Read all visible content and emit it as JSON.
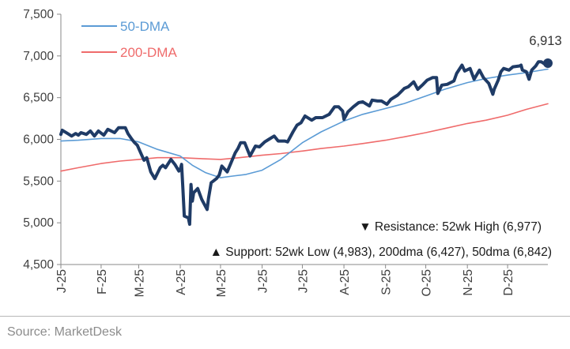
{
  "chart_data": {
    "type": "line",
    "title": "",
    "xlabel": "",
    "ylabel": "",
    "ylim": [
      4500,
      7500
    ],
    "y_ticks": [
      4500,
      5000,
      5500,
      6000,
      6500,
      7000,
      7500
    ],
    "y_tick_labels": [
      "4,500",
      "5,000",
      "5,500",
      "6,000",
      "6,500",
      "7,000",
      "7,500"
    ],
    "x_range": [
      "2025-01-02",
      "2025-12-31"
    ],
    "x_ticks": [
      {
        "date": "2025-01-01",
        "label": "J-25"
      },
      {
        "date": "2025-02-01",
        "label": "F-25"
      },
      {
        "date": "2025-03-01",
        "label": "M-25"
      },
      {
        "date": "2025-04-01",
        "label": "A-25"
      },
      {
        "date": "2025-05-01",
        "label": "M-25"
      },
      {
        "date": "2025-06-01",
        "label": "J-25"
      },
      {
        "date": "2025-07-01",
        "label": "J-25"
      },
      {
        "date": "2025-08-01",
        "label": "A-25"
      },
      {
        "date": "2025-09-01",
        "label": "S-25"
      },
      {
        "date": "2025-10-01",
        "label": "O-25"
      },
      {
        "date": "2025-11-01",
        "label": "N-25"
      },
      {
        "date": "2025-12-01",
        "label": "D-25"
      }
    ],
    "grid": false,
    "legend_position": "top-left",
    "series": [
      {
        "name": "",
        "color": "#1f3b66",
        "points": [
          [
            "2025-01-02",
            6060
          ],
          [
            "2025-01-03",
            6110
          ],
          [
            "2025-01-07",
            6070
          ],
          [
            "2025-01-10",
            6040
          ],
          [
            "2025-01-13",
            6070
          ],
          [
            "2025-01-15",
            6050
          ],
          [
            "2025-01-17",
            6080
          ],
          [
            "2025-01-21",
            6060
          ],
          [
            "2025-01-24",
            6100
          ],
          [
            "2025-01-27",
            6040
          ],
          [
            "2025-01-30",
            6100
          ],
          [
            "2025-02-03",
            6050
          ],
          [
            "2025-02-06",
            6120
          ],
          [
            "2025-02-11",
            6080
          ],
          [
            "2025-02-14",
            6140
          ],
          [
            "2025-02-19",
            6140
          ],
          [
            "2025-02-21",
            6070
          ],
          [
            "2025-02-24",
            6000
          ],
          [
            "2025-02-26",
            5960
          ],
          [
            "2025-02-28",
            5930
          ],
          [
            "2025-03-03",
            5820
          ],
          [
            "2025-03-05",
            5750
          ],
          [
            "2025-03-07",
            5780
          ],
          [
            "2025-03-10",
            5610
          ],
          [
            "2025-03-13",
            5530
          ],
          [
            "2025-03-17",
            5660
          ],
          [
            "2025-03-19",
            5690
          ],
          [
            "2025-03-21",
            5660
          ],
          [
            "2025-03-25",
            5760
          ],
          [
            "2025-03-28",
            5700
          ],
          [
            "2025-03-31",
            5620
          ],
          [
            "2025-04-01",
            5640
          ],
          [
            "2025-04-02",
            5700
          ],
          [
            "2025-04-03",
            5400
          ],
          [
            "2025-04-04",
            5080
          ],
          [
            "2025-04-07",
            5060
          ],
          [
            "2025-04-08",
            4983
          ],
          [
            "2025-04-09",
            5460
          ],
          [
            "2025-04-10",
            5260
          ],
          [
            "2025-04-11",
            5360
          ],
          [
            "2025-04-14",
            5410
          ],
          [
            "2025-04-17",
            5280
          ],
          [
            "2025-04-21",
            5160
          ],
          [
            "2025-04-22",
            5290
          ],
          [
            "2025-04-24",
            5480
          ],
          [
            "2025-04-28",
            5530
          ],
          [
            "2025-04-30",
            5570
          ],
          [
            "2025-05-02",
            5680
          ],
          [
            "2025-05-06",
            5610
          ],
          [
            "2025-05-12",
            5840
          ],
          [
            "2025-05-14",
            5890
          ],
          [
            "2025-05-16",
            5960
          ],
          [
            "2025-05-19",
            5960
          ],
          [
            "2025-05-23",
            5800
          ],
          [
            "2025-05-27",
            5920
          ],
          [
            "2025-05-30",
            5910
          ],
          [
            "2025-06-03",
            5970
          ],
          [
            "2025-06-06",
            6000
          ],
          [
            "2025-06-10",
            6040
          ],
          [
            "2025-06-13",
            5980
          ],
          [
            "2025-06-18",
            5980
          ],
          [
            "2025-06-20",
            5970
          ],
          [
            "2025-06-24",
            6090
          ],
          [
            "2025-06-27",
            6170
          ],
          [
            "2025-06-30",
            6200
          ],
          [
            "2025-07-03",
            6280
          ],
          [
            "2025-07-08",
            6230
          ],
          [
            "2025-07-11",
            6260
          ],
          [
            "2025-07-16",
            6260
          ],
          [
            "2025-07-21",
            6300
          ],
          [
            "2025-07-25",
            6390
          ],
          [
            "2025-07-28",
            6390
          ],
          [
            "2025-07-31",
            6340
          ],
          [
            "2025-08-01",
            6240
          ],
          [
            "2025-08-04",
            6330
          ],
          [
            "2025-08-08",
            6390
          ],
          [
            "2025-08-12",
            6440
          ],
          [
            "2025-08-15",
            6450
          ],
          [
            "2025-08-20",
            6400
          ],
          [
            "2025-08-22",
            6470
          ],
          [
            "2025-08-26",
            6460
          ],
          [
            "2025-08-29",
            6460
          ],
          [
            "2025-09-02",
            6420
          ],
          [
            "2025-09-05",
            6480
          ],
          [
            "2025-09-10",
            6530
          ],
          [
            "2025-09-15",
            6610
          ],
          [
            "2025-09-18",
            6630
          ],
          [
            "2025-09-22",
            6690
          ],
          [
            "2025-09-25",
            6600
          ],
          [
            "2025-09-29",
            6660
          ],
          [
            "2025-10-02",
            6710
          ],
          [
            "2025-10-06",
            6740
          ],
          [
            "2025-10-09",
            6740
          ],
          [
            "2025-10-10",
            6550
          ],
          [
            "2025-10-13",
            6650
          ],
          [
            "2025-10-17",
            6660
          ],
          [
            "2025-10-22",
            6700
          ],
          [
            "2025-10-24",
            6790
          ],
          [
            "2025-10-28",
            6890
          ],
          [
            "2025-10-30",
            6820
          ],
          [
            "2025-11-03",
            6850
          ],
          [
            "2025-11-06",
            6720
          ],
          [
            "2025-11-10",
            6830
          ],
          [
            "2025-11-13",
            6740
          ],
          [
            "2025-11-17",
            6670
          ],
          [
            "2025-11-20",
            6540
          ],
          [
            "2025-11-21",
            6600
          ],
          [
            "2025-11-24",
            6710
          ],
          [
            "2025-11-26",
            6810
          ],
          [
            "2025-11-28",
            6850
          ],
          [
            "2025-12-02",
            6830
          ],
          [
            "2025-12-05",
            6870
          ],
          [
            "2025-12-10",
            6880
          ],
          [
            "2025-12-11",
            6890
          ],
          [
            "2025-12-12",
            6830
          ],
          [
            "2025-12-15",
            6810
          ],
          [
            "2025-12-17",
            6720
          ],
          [
            "2025-12-19",
            6830
          ],
          [
            "2025-12-22",
            6880
          ],
          [
            "2025-12-24",
            6930
          ],
          [
            "2025-12-26",
            6930
          ],
          [
            "2025-12-29",
            6900
          ],
          [
            "2025-12-31",
            6913
          ]
        ]
      },
      {
        "name": "50-DMA",
        "color": "#5b9bd5",
        "points": [
          [
            "2025-01-02",
            5980
          ],
          [
            "2025-01-15",
            5990
          ],
          [
            "2025-02-01",
            6010
          ],
          [
            "2025-02-15",
            6010
          ],
          [
            "2025-03-01",
            5970
          ],
          [
            "2025-03-15",
            5880
          ],
          [
            "2025-04-01",
            5800
          ],
          [
            "2025-04-10",
            5690
          ],
          [
            "2025-04-20",
            5600
          ],
          [
            "2025-05-01",
            5540
          ],
          [
            "2025-05-10",
            5560
          ],
          [
            "2025-05-20",
            5580
          ],
          [
            "2025-06-01",
            5630
          ],
          [
            "2025-06-15",
            5760
          ],
          [
            "2025-07-01",
            5960
          ],
          [
            "2025-07-15",
            6090
          ],
          [
            "2025-08-01",
            6220
          ],
          [
            "2025-08-15",
            6300
          ],
          [
            "2025-09-01",
            6370
          ],
          [
            "2025-09-15",
            6430
          ],
          [
            "2025-10-01",
            6520
          ],
          [
            "2025-10-15",
            6600
          ],
          [
            "2025-11-01",
            6680
          ],
          [
            "2025-11-15",
            6730
          ],
          [
            "2025-12-01",
            6770
          ],
          [
            "2025-12-15",
            6800
          ],
          [
            "2025-12-31",
            6842
          ]
        ]
      },
      {
        "name": "200-DMA",
        "color": "#ef6b6b",
        "points": [
          [
            "2025-01-02",
            5620
          ],
          [
            "2025-01-15",
            5660
          ],
          [
            "2025-02-01",
            5710
          ],
          [
            "2025-02-15",
            5740
          ],
          [
            "2025-03-01",
            5760
          ],
          [
            "2025-03-15",
            5780
          ],
          [
            "2025-04-01",
            5780
          ],
          [
            "2025-04-15",
            5770
          ],
          [
            "2025-05-01",
            5760
          ],
          [
            "2025-05-15",
            5780
          ],
          [
            "2025-06-01",
            5810
          ],
          [
            "2025-06-15",
            5830
          ],
          [
            "2025-07-01",
            5860
          ],
          [
            "2025-07-15",
            5890
          ],
          [
            "2025-08-01",
            5920
          ],
          [
            "2025-08-15",
            5950
          ],
          [
            "2025-09-01",
            5990
          ],
          [
            "2025-09-15",
            6030
          ],
          [
            "2025-10-01",
            6080
          ],
          [
            "2025-10-15",
            6130
          ],
          [
            "2025-11-01",
            6190
          ],
          [
            "2025-11-15",
            6230
          ],
          [
            "2025-12-01",
            6290
          ],
          [
            "2025-12-15",
            6360
          ],
          [
            "2025-12-31",
            6427
          ]
        ]
      }
    ],
    "last_value_label": "6,913",
    "annotations": [
      "▼ Resistance:  52wk High (6,977)",
      "▲ Support:  52wk Low (4,983), 200dma (6,427), 50dma (6,842)"
    ]
  },
  "source": "Source: MarketDesk"
}
